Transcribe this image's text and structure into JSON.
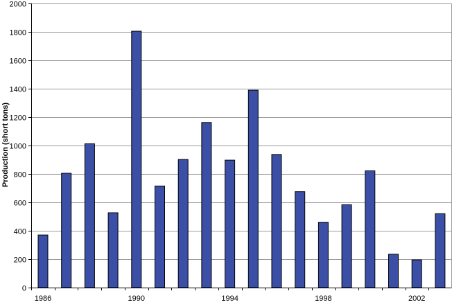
{
  "chart_data": {
    "type": "bar",
    "ylabel": "Production (short tons)",
    "ylim": [
      0,
      2000
    ],
    "yticks": [
      0,
      200,
      400,
      600,
      800,
      1000,
      1200,
      1400,
      1600,
      1800,
      2000
    ],
    "categories": [
      "1986",
      "1987",
      "1988",
      "1989",
      "1990",
      "1991",
      "1992",
      "1993",
      "1994",
      "1995",
      "1996",
      "1997",
      "1998",
      "1999",
      "2000",
      "2001",
      "2002",
      "2003"
    ],
    "xtick_labels": [
      "1986",
      "1990",
      "1994",
      "1998",
      "2002"
    ],
    "values": [
      370,
      805,
      1012,
      527,
      1805,
      715,
      902,
      1162,
      897,
      1390,
      937,
      675,
      460,
      583,
      822,
      235,
      195,
      520
    ],
    "grid": true,
    "bar_color": "#3b4fa6",
    "bar_edge_color": "#000000",
    "grid_color": "#999999"
  }
}
